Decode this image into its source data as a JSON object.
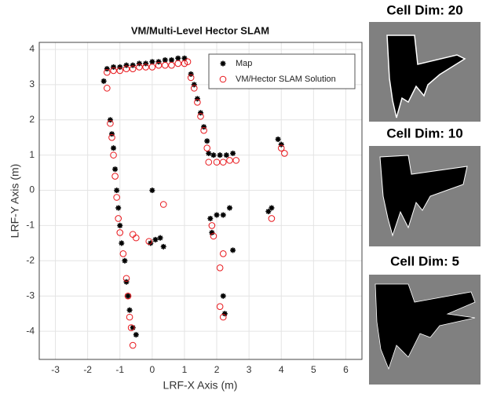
{
  "chart_data": {
    "type": "scatter",
    "title": "VM/Multi-Level Hector SLAM",
    "xlabel": "LRF-X Axis (m)",
    "ylabel": "LRF-Y Axis (m)",
    "xlim": [
      -3.5,
      6.5
    ],
    "ylim": [
      -4.8,
      4.2
    ],
    "xticks": [
      -3,
      -2,
      -1,
      0,
      1,
      2,
      3,
      4,
      5,
      6
    ],
    "yticks": [
      -4,
      -3,
      -2,
      -1,
      0,
      1,
      2,
      3,
      4
    ],
    "grid": true,
    "legend": "upper-right",
    "series": [
      {
        "name": "Map",
        "color": "#000000",
        "marker": "asterisk",
        "x": [
          -1.5,
          -1.4,
          -1.2,
          -1.0,
          -0.8,
          -0.6,
          -0.4,
          -0.2,
          0.0,
          0.2,
          0.4,
          0.6,
          0.8,
          1.0,
          1.2,
          1.3,
          1.4,
          1.5,
          1.6,
          1.7,
          1.75,
          1.9,
          2.1,
          2.3,
          2.5,
          3.9,
          4.0,
          -1.3,
          -1.25,
          -1.2,
          -1.15,
          -1.1,
          -1.05,
          -1.0,
          -0.95,
          -0.85,
          -0.8,
          -0.75,
          -0.7,
          -0.6,
          -0.5,
          0.0,
          -0.05,
          0.1,
          0.25,
          0.35,
          1.8,
          2.0,
          2.2,
          2.4,
          1.85,
          2.5,
          2.2,
          2.25,
          3.6,
          3.7
        ],
        "y": [
          3.1,
          3.45,
          3.5,
          3.5,
          3.55,
          3.55,
          3.6,
          3.6,
          3.65,
          3.65,
          3.7,
          3.7,
          3.75,
          3.75,
          3.3,
          3.0,
          2.6,
          2.2,
          1.8,
          1.4,
          1.05,
          1.0,
          1.0,
          1.0,
          1.05,
          1.45,
          1.3,
          2.0,
          1.6,
          1.2,
          0.6,
          0.0,
          -0.5,
          -1.0,
          -1.5,
          -2.0,
          -2.6,
          -3.0,
          -3.4,
          -3.9,
          -4.1,
          0.0,
          -1.5,
          -1.4,
          -1.35,
          -1.6,
          -0.8,
          -0.7,
          -0.7,
          -0.5,
          -1.2,
          -1.7,
          -3.0,
          -3.5,
          -0.6,
          -0.5
        ]
      },
      {
        "name": "VM/Hector SLAM Solution",
        "color": "#e8161b",
        "marker": "circle",
        "x": [
          -1.4,
          -1.4,
          -1.2,
          -1.0,
          -0.8,
          -0.6,
          -0.4,
          -0.2,
          0.0,
          0.2,
          0.4,
          0.6,
          0.8,
          1.0,
          1.1,
          1.2,
          1.3,
          1.4,
          1.5,
          1.6,
          1.7,
          1.75,
          2.0,
          2.2,
          2.4,
          2.6,
          4.0,
          4.1,
          -1.3,
          -1.25,
          -1.2,
          -1.15,
          -1.1,
          -1.05,
          -1.0,
          -0.9,
          -0.8,
          -0.75,
          -0.7,
          -0.65,
          -0.6,
          -0.6,
          -0.5,
          0.35,
          -0.1,
          1.85,
          1.9,
          2.1,
          2.2,
          2.1,
          2.2,
          3.7
        ],
        "y": [
          3.35,
          2.9,
          3.4,
          3.4,
          3.45,
          3.45,
          3.5,
          3.5,
          3.5,
          3.55,
          3.55,
          3.55,
          3.6,
          3.6,
          3.65,
          3.2,
          2.9,
          2.5,
          2.1,
          1.7,
          1.2,
          0.8,
          0.8,
          0.8,
          0.85,
          0.85,
          1.2,
          1.05,
          1.9,
          1.5,
          1.0,
          0.4,
          -0.2,
          -0.8,
          -1.2,
          -1.8,
          -2.5,
          -3.0,
          -3.6,
          -3.9,
          -4.4,
          -1.25,
          -1.35,
          -0.4,
          -1.45,
          -1.0,
          -1.3,
          -2.2,
          -1.8,
          -3.3,
          -3.6,
          -0.8
        ]
      }
    ]
  },
  "panels": [
    {
      "title": "Cell Dim: 20"
    },
    {
      "title": "Cell Dim: 10"
    },
    {
      "title": "Cell Dim: 5"
    }
  ]
}
